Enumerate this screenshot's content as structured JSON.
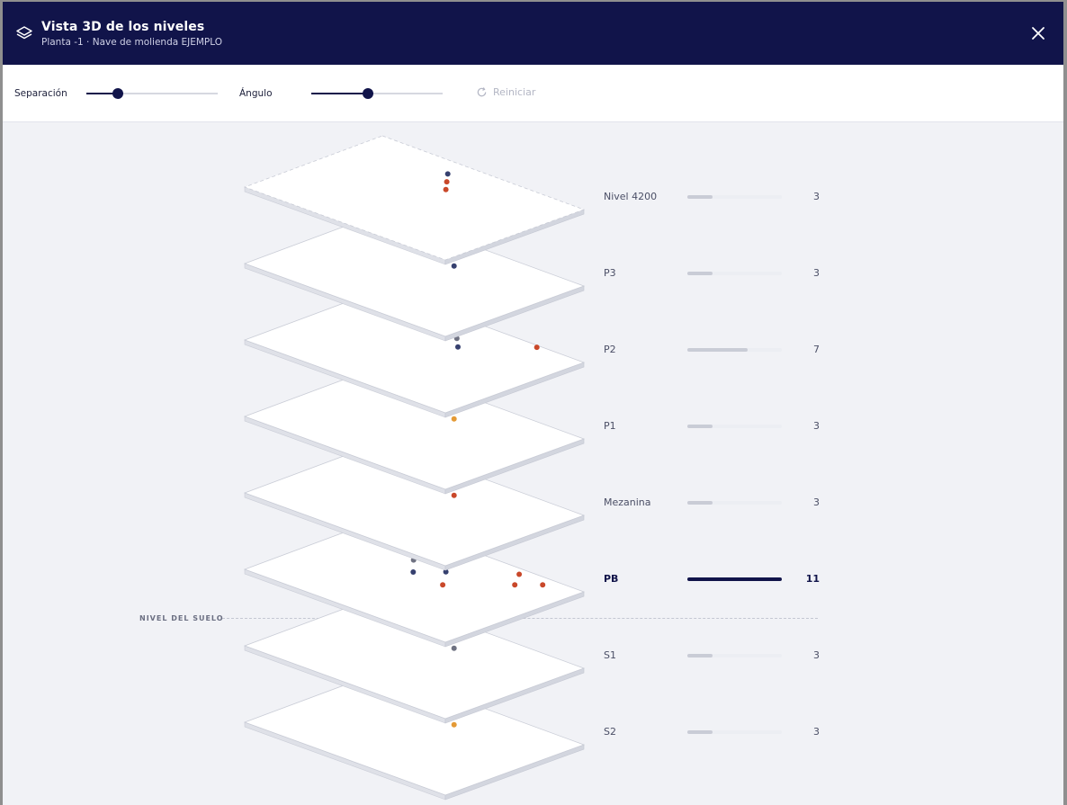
{
  "header": {
    "title": "Vista 3D de los niveles",
    "subtitle": "Planta -1 · Nave de molienda EJEMPLO",
    "icon": "layers-icon",
    "close_icon": "close-icon"
  },
  "toolbar": {
    "separation_label": "Separación",
    "separation_value": 0.24,
    "angle_label": "Ángulo",
    "angle_value": 0.43,
    "reset_label": "Reiniciar"
  },
  "ground_label": "NIVEL DEL SUELO",
  "colors": {
    "navy": "#11144a",
    "blue_dot": "#36406f",
    "red_dot": "#c9482a",
    "orange_dot": "#e49a36",
    "gray_dot": "#6f7282"
  },
  "levels": [
    {
      "name": "Nivel 4200",
      "count": "3",
      "fraction": 0.27,
      "active": false,
      "dots": [
        {
          "u": 0.42,
          "v": 0.14,
          "c": "blue_dot"
        },
        {
          "u": 0.47,
          "v": 0.22,
          "c": "red_dot"
        },
        {
          "u": 0.52,
          "v": 0.3,
          "c": "red_dot"
        }
      ]
    },
    {
      "name": "P3",
      "count": "3",
      "fraction": 0.27,
      "active": false,
      "dots": [
        {
          "u": 0.49,
          "v": 0.19,
          "c": "gray_dot"
        },
        {
          "u": 0.54,
          "v": 0.27,
          "c": "blue_dot"
        }
      ]
    },
    {
      "name": "P2",
      "count": "7",
      "fraction": 0.64,
      "active": false,
      "dots": [
        {
          "u": 0.27,
          "v": 0.12,
          "c": "red_dot"
        },
        {
          "u": 0.37,
          "v": 0.18,
          "c": "orange_dot"
        },
        {
          "u": 0.43,
          "v": 0.08,
          "c": "orange_dot"
        },
        {
          "u": 0.52,
          "v": 0.22,
          "c": "gray_dot"
        },
        {
          "u": 0.58,
          "v": 0.3,
          "c": "blue_dot"
        },
        {
          "u": 0.78,
          "v": 0.02,
          "c": "red_dot"
        }
      ]
    },
    {
      "name": "P1",
      "count": "3",
      "fraction": 0.27,
      "active": false,
      "dots": [
        {
          "u": 0.49,
          "v": 0.19,
          "c": "red_dot"
        },
        {
          "u": 0.54,
          "v": 0.27,
          "c": "orange_dot"
        }
      ]
    },
    {
      "name": "Mezanina",
      "count": "3",
      "fraction": 0.27,
      "active": false,
      "dots": [
        {
          "u": 0.49,
          "v": 0.19,
          "c": "blue_dot"
        },
        {
          "u": 0.54,
          "v": 0.27,
          "c": "red_dot"
        }
      ]
    },
    {
      "name": "PB",
      "count": "11",
      "fraction": 1.0,
      "active": true,
      "dots": [
        {
          "u": 0.2,
          "v": 0.25,
          "c": "orange_dot"
        },
        {
          "u": 0.26,
          "v": 0.14,
          "c": "orange_dot"
        },
        {
          "u": 0.36,
          "v": 0.3,
          "c": "gray_dot"
        },
        {
          "u": 0.42,
          "v": 0.18,
          "c": "gray_dot"
        },
        {
          "u": 0.44,
          "v": 0.42,
          "c": "blue_dot"
        },
        {
          "u": 0.52,
          "v": 0.3,
          "c": "blue_dot"
        },
        {
          "u": 0.6,
          "v": 0.44,
          "c": "red_dot"
        },
        {
          "u": 0.72,
          "v": 0.06,
          "c": "red_dot"
        },
        {
          "u": 0.78,
          "v": 0.18,
          "c": "red_dot"
        },
        {
          "u": 0.85,
          "v": 0.08,
          "c": "red_dot"
        }
      ]
    },
    {
      "name": "S1",
      "count": "3",
      "fraction": 0.27,
      "active": false,
      "dots": [
        {
          "u": 0.49,
          "v": 0.19,
          "c": "orange_dot"
        },
        {
          "u": 0.54,
          "v": 0.27,
          "c": "gray_dot"
        }
      ]
    },
    {
      "name": "S2",
      "count": "3",
      "fraction": 0.27,
      "active": false,
      "dots": [
        {
          "u": 0.49,
          "v": 0.19,
          "c": "red_dot"
        },
        {
          "u": 0.54,
          "v": 0.27,
          "c": "orange_dot"
        }
      ]
    }
  ]
}
